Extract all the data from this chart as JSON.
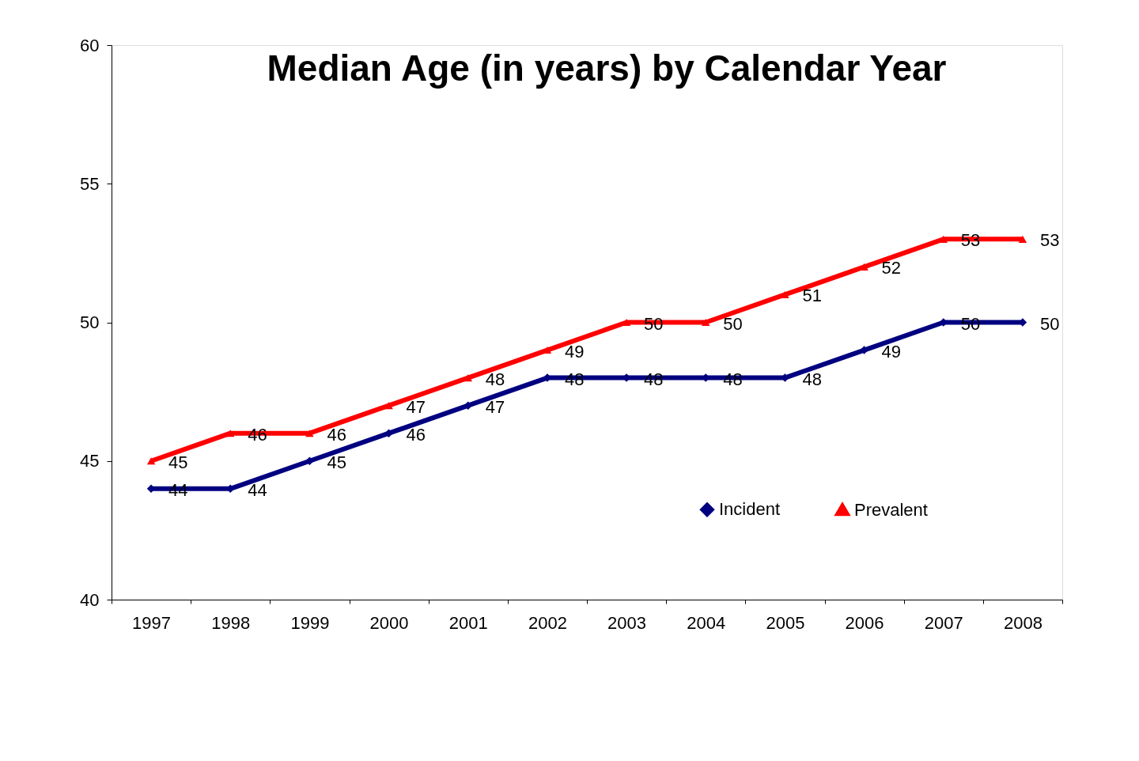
{
  "chart_data": {
    "type": "line",
    "title": "Median Age (in years)  by Calendar Year",
    "categories": [
      "1997",
      "1998",
      "1999",
      "2000",
      "2001",
      "2002",
      "2003",
      "2004",
      "2005",
      "2006",
      "2007",
      "2008"
    ],
    "series": [
      {
        "name": "Incident",
        "color": "#000080",
        "marker": "diamond",
        "values": [
          44,
          44,
          45,
          46,
          47,
          48,
          48,
          48,
          48,
          49,
          50,
          50
        ]
      },
      {
        "name": "Prevalent",
        "color": "#ff0000",
        "marker": "triangle",
        "values": [
          45,
          46,
          46,
          47,
          48,
          49,
          50,
          50,
          51,
          52,
          53,
          53
        ]
      }
    ],
    "ylim": [
      40,
      60
    ],
    "yticks": [
      40,
      45,
      50,
      55,
      60
    ],
    "grid": false,
    "legend": "bottom right",
    "data_labels": true,
    "line_style": "solid"
  }
}
